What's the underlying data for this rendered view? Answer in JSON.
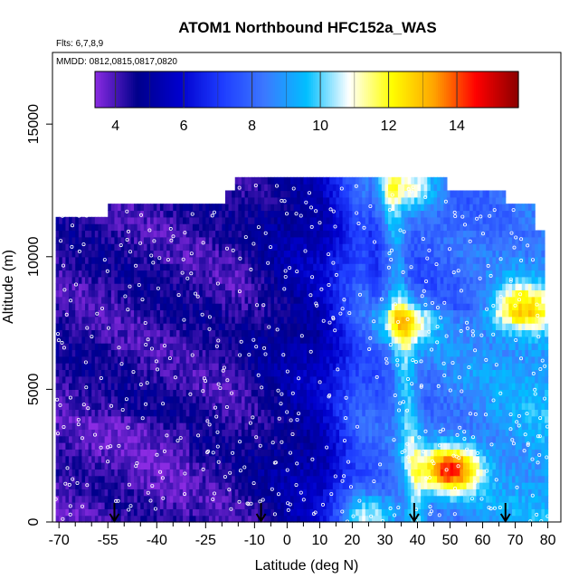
{
  "chart_data": {
    "type": "heatmap",
    "title": "ATOM1 Northbound HFC152a_WAS",
    "flights_label": "Flts: 6,7,8,9",
    "dates_label": "MMDD: 0812,0815,0817,0820",
    "xlabel": "Latitude (deg N)",
    "ylabel": "Altitude (m)",
    "xlim": [
      -72,
      84
    ],
    "ylim": [
      0,
      17700
    ],
    "x_ticks": [
      -70,
      -55,
      -40,
      -25,
      -10,
      0,
      10,
      20,
      30,
      40,
      50,
      60,
      70,
      80
    ],
    "x_minor_ticks": [
      -65,
      -60,
      -50,
      -45,
      -35,
      -30,
      -20,
      -15,
      -5,
      5,
      15,
      25,
      35,
      45,
      55,
      65,
      75
    ],
    "y_ticks": [
      0,
      5000,
      10000,
      15000
    ],
    "colorbar": {
      "min": 3.4,
      "max": 15.8,
      "ticks": [
        4,
        6,
        8,
        10,
        12,
        14
      ],
      "colors": [
        "#8a2be2",
        "#00008b",
        "#0000cd",
        "#1e3cff",
        "#3c78ff",
        "#00bfff",
        "#ffffff",
        "#ffff00",
        "#ffa500",
        "#ff0000",
        "#8b0000"
      ]
    },
    "data_extent": {
      "lat_min": -71,
      "lat_max": 80,
      "alt_min": 0,
      "alt_max": 12900
    },
    "flight_markers_lat": [
      -53,
      -8,
      39,
      67
    ],
    "hotspots": [
      {
        "lat": 50,
        "alt": 2000,
        "value": 15.0
      },
      {
        "lat": 37,
        "alt": 7600,
        "value": 12.0
      },
      {
        "lat": 38,
        "alt": 12700,
        "value": 12.5
      },
      {
        "lat": 72,
        "alt": 8100,
        "value": 13.0
      },
      {
        "lat": 25,
        "alt": 300,
        "value": 11.5
      }
    ]
  }
}
